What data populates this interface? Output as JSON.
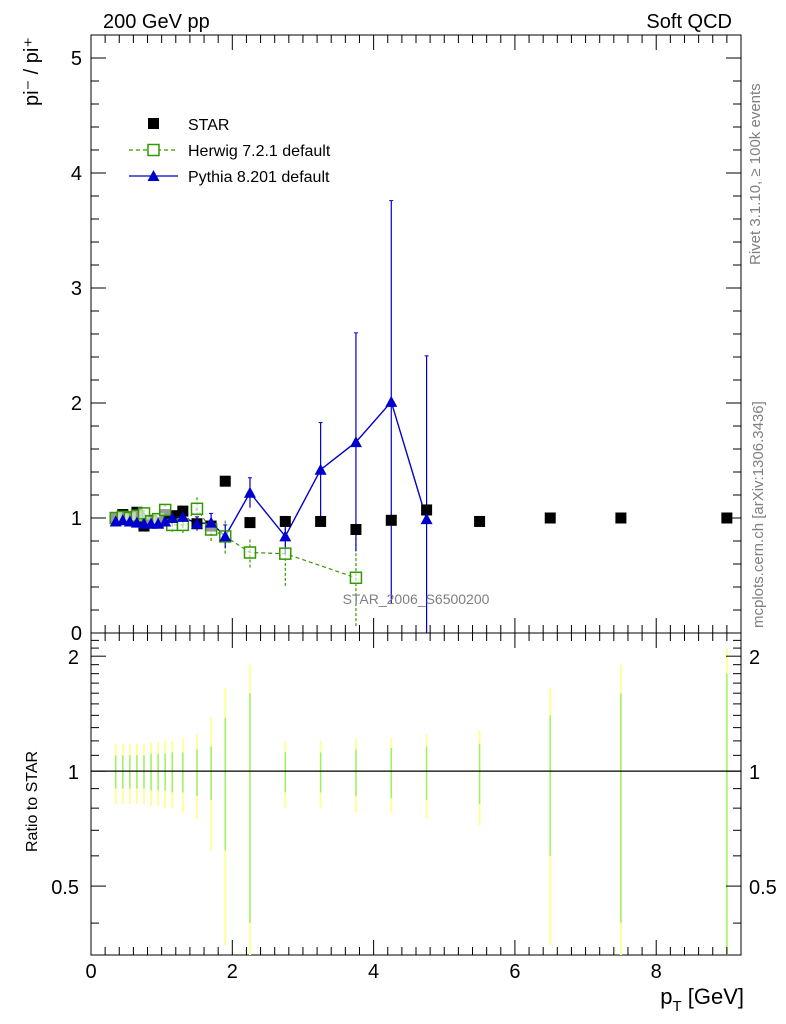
{
  "header": {
    "left": "200 GeV pp",
    "right": "Soft QCD"
  },
  "side_text": {
    "rivet": "Rivet 3.1.10, ≥ 100k events",
    "mcplots": "mcplots.cern.ch [arXiv:1306.3436]"
  },
  "watermark": "STAR_2006_S6500200",
  "colors": {
    "star": "#000000",
    "herwig": "#339900",
    "pythia": "#0000cc",
    "ratio_band_inner": "#99ee77",
    "ratio_band_outer": "#ffff99"
  },
  "chart_data": [
    {
      "type": "scatter",
      "ylabel": "pi⁻ / pi⁺",
      "xlim": [
        0,
        9.2
      ],
      "ylim": [
        0,
        5.2
      ],
      "yticks": [
        "0",
        "1",
        "2",
        "3",
        "4",
        "5"
      ],
      "legend": {
        "placement": "top-left",
        "items": [
          "STAR",
          "Herwig 7.2.1 default",
          "Pythia 8.201 default"
        ]
      },
      "series": [
        {
          "name": "STAR",
          "marker": "filled-square",
          "x": [
            0.35,
            0.45,
            0.55,
            0.65,
            0.75,
            0.85,
            0.95,
            1.05,
            1.15,
            1.3,
            1.5,
            1.7,
            1.9,
            2.25,
            2.75,
            3.25,
            3.75,
            4.25,
            4.75,
            5.5,
            6.5,
            7.5,
            9.0
          ],
          "y": [
            1.0,
            1.03,
            1.01,
            1.05,
            0.93,
            0.98,
            0.96,
            1.03,
            1.02,
            1.06,
            0.95,
            0.93,
            1.32,
            0.96,
            0.97,
            0.97,
            0.9,
            0.98,
            1.07,
            0.97,
            1.0,
            1.0,
            1.0
          ]
        },
        {
          "name": "Herwig 7.2.1 default",
          "marker": "open-square",
          "line": "dashed",
          "x": [
            0.35,
            0.45,
            0.55,
            0.65,
            0.75,
            0.85,
            0.95,
            1.05,
            1.15,
            1.3,
            1.5,
            1.7,
            1.9,
            2.25,
            2.75,
            3.75
          ],
          "y": [
            1.0,
            1.01,
            1.0,
            1.02,
            1.04,
            0.97,
            0.99,
            1.07,
            0.94,
            0.94,
            1.08,
            0.9,
            0.84,
            0.7,
            0.69,
            0.48
          ],
          "err": [
            0.03,
            0.03,
            0.03,
            0.04,
            0.04,
            0.05,
            0.05,
            0.06,
            0.06,
            0.07,
            0.1,
            0.1,
            0.15,
            0.13,
            0.28,
            0.42
          ]
        },
        {
          "name": "Pythia 8.201 default",
          "marker": "filled-triangle",
          "line": "solid",
          "x": [
            0.35,
            0.45,
            0.55,
            0.65,
            0.75,
            0.85,
            0.95,
            1.05,
            1.15,
            1.3,
            1.5,
            1.7,
            1.9,
            2.25,
            2.75,
            3.25,
            3.75,
            4.25,
            4.75
          ],
          "y": [
            0.97,
            0.98,
            0.97,
            0.96,
            0.95,
            0.95,
            0.95,
            0.97,
            1.0,
            1.01,
            0.95,
            0.96,
            0.84,
            1.22,
            0.84,
            1.42,
            1.66,
            2.01,
            0.99
          ],
          "err": [
            0.02,
            0.02,
            0.02,
            0.03,
            0.03,
            0.03,
            0.04,
            0.04,
            0.05,
            0.05,
            0.06,
            0.08,
            0.1,
            0.13,
            0.15,
            0.41,
            0.95,
            1.75,
            1.42
          ]
        }
      ]
    },
    {
      "type": "scatter",
      "ylabel": "Ratio to STAR",
      "xlabel": "p_T [GeV]",
      "xlim": [
        0,
        9.2
      ],
      "ylim": [
        0.33,
        2.3
      ],
      "xticks": [
        "0",
        "2",
        "4",
        "6",
        "8"
      ],
      "yticks": [
        "0.5",
        "1",
        "2"
      ],
      "reference": 1,
      "band_x": [
        0.35,
        0.45,
        0.55,
        0.65,
        0.75,
        0.85,
        0.95,
        1.05,
        1.15,
        1.3,
        1.5,
        1.7,
        1.9,
        2.25,
        2.75,
        3.25,
        3.75,
        4.25,
        4.75,
        5.5,
        6.5,
        7.5,
        9.0
      ],
      "band_inner": [
        0.1,
        0.1,
        0.1,
        0.1,
        0.1,
        0.11,
        0.11,
        0.11,
        0.12,
        0.12,
        0.14,
        0.16,
        0.38,
        0.6,
        0.12,
        0.12,
        0.14,
        0.15,
        0.16,
        0.18,
        0.4,
        0.6,
        0.8
      ],
      "band_outer": [
        0.18,
        0.18,
        0.18,
        0.18,
        0.18,
        0.19,
        0.19,
        0.2,
        0.2,
        0.22,
        0.25,
        0.38,
        0.65,
        0.9,
        0.2,
        0.2,
        0.22,
        0.22,
        0.25,
        0.28,
        0.65,
        0.9,
        1.1
      ]
    }
  ]
}
